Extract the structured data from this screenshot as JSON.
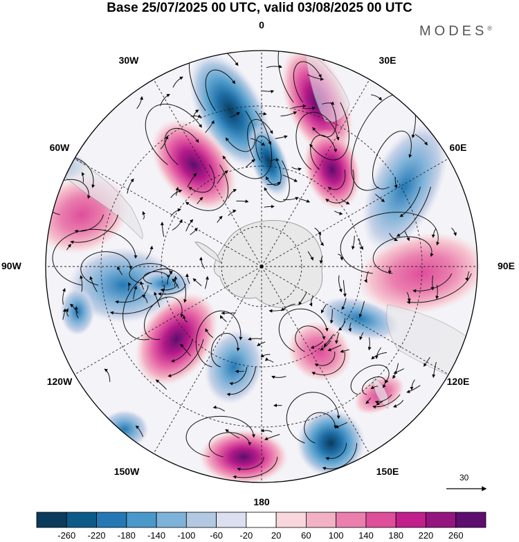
{
  "title": "Base 25/07/2025 00 UTC, valid 03/08/2025 00 UTC",
  "brand": {
    "name": "MODES",
    "mark": "®"
  },
  "map": {
    "projection": "south-polar-stereographic",
    "longitude_labels": [
      "0",
      "30E",
      "60E",
      "90E",
      "120E",
      "150E",
      "180",
      "150W",
      "120W",
      "90W",
      "60W",
      "30W"
    ],
    "anomaly_centers": [
      {
        "name": "neg-center-south-atlantic",
        "value": -260
      },
      {
        "name": "neg-center-atlantic-2",
        "value": -260
      },
      {
        "name": "pos-center-sw-atlantic",
        "value": 260
      },
      {
        "name": "pos-center-south-africa",
        "value": 220
      },
      {
        "name": "pos-center-africa-2",
        "value": 220
      },
      {
        "name": "neg-center-indian",
        "value": -180
      },
      {
        "name": "pos-center-indian-east",
        "value": 180
      },
      {
        "name": "neg-center-tasman",
        "value": -260
      },
      {
        "name": "pos-center-ross",
        "value": 180
      },
      {
        "name": "pos-center-pacific",
        "value": 260
      },
      {
        "name": "neg-center-pacific",
        "value": -180
      },
      {
        "name": "pos-center-south-america",
        "value": 140
      },
      {
        "name": "neg-center-amundsen",
        "value": -180
      }
    ]
  },
  "vector_reference": {
    "label": "30"
  },
  "colorbar": {
    "ticks": [
      "-260",
      "-220",
      "-180",
      "-140",
      "-100",
      "-60",
      "-20",
      "20",
      "60",
      "100",
      "140",
      "180",
      "220",
      "260"
    ],
    "colors": [
      "#0a3b5c",
      "#0d5a88",
      "#2479b5",
      "#4a98c9",
      "#7fb2d8",
      "#b3c9e2",
      "#dcdfef",
      "#ffffff",
      "#f8d8dc",
      "#f3b2c4",
      "#ea7fae",
      "#de4e9b",
      "#c11f8c",
      "#951580",
      "#5e0e6e"
    ]
  }
}
